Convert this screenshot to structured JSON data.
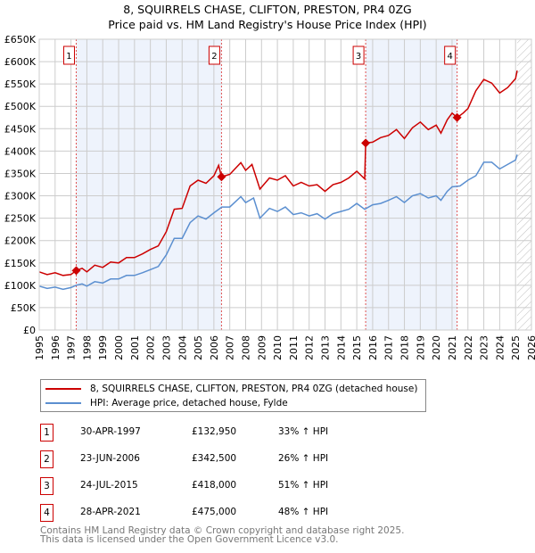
{
  "title_line1": "8, SQUIRRELS CHASE, CLIFTON, PRESTON, PR4 0ZG",
  "title_line2": "Price paid vs. HM Land Registry's House Price Index (HPI)",
  "chart_data": {
    "type": "line",
    "title": "8, SQUIRRELS CHASE, CLIFTON, PRESTON, PR4 0ZG — Price paid vs. HM Land Registry's House Price Index (HPI)",
    "xlim": [
      1995,
      2026
    ],
    "ylim": [
      0,
      650000
    ],
    "grid": true,
    "x_ticks": [
      "1995",
      "1996",
      "1997",
      "1998",
      "1999",
      "2000",
      "2001",
      "2002",
      "2003",
      "2004",
      "2005",
      "2006",
      "2007",
      "2008",
      "2009",
      "2010",
      "2011",
      "2012",
      "2013",
      "2014",
      "2015",
      "2016",
      "2017",
      "2018",
      "2019",
      "2020",
      "2021",
      "2022",
      "2023",
      "2024",
      "2025",
      "2026"
    ],
    "y_ticks": [
      "£0",
      "£50K",
      "£100K",
      "£150K",
      "£200K",
      "£250K",
      "£300K",
      "£350K",
      "£400K",
      "£450K",
      "£500K",
      "£550K",
      "£600K",
      "£650K"
    ],
    "colors": {
      "property": "#cc0000",
      "hpi": "#5b8fd0",
      "shade": "#eef3fc",
      "marker_line": "#e05050"
    },
    "shaded_ranges": [
      [
        1997.33,
        2006.48
      ],
      [
        2015.56,
        2021.32
      ]
    ],
    "forecast_hatch_from": 2025.1,
    "series": [
      {
        "name": "8, SQUIRRELS CHASE, CLIFTON, PRESTON, PR4 0ZG (detached house)",
        "color": "#cc0000",
        "x": [
          1995,
          1995.5,
          1996,
          1996.5,
          1997,
          1997.33,
          1997.7,
          1998,
          1998.5,
          1999,
          1999.5,
          2000,
          2000.5,
          2001,
          2001.5,
          2002,
          2002.5,
          2003,
          2003.5,
          2004,
          2004.5,
          2005,
          2005.5,
          2006,
          2006.3,
          2006.48,
          2007,
          2007.7,
          2008,
          2008.4,
          2008.9,
          2009.5,
          2010,
          2010.5,
          2011,
          2011.5,
          2012,
          2012.5,
          2013,
          2013.5,
          2014,
          2014.5,
          2015,
          2015.5,
          2015.56,
          2016,
          2016.5,
          2017,
          2017.5,
          2018,
          2018.5,
          2019,
          2019.5,
          2020,
          2020.3,
          2020.7,
          2021,
          2021.32,
          2021.7,
          2022,
          2022.5,
          2023,
          2023.5,
          2024,
          2024.5,
          2025,
          2025.1
        ],
        "y": [
          130000,
          124000,
          128000,
          122000,
          124000,
          132950,
          138000,
          130000,
          145000,
          140000,
          152000,
          150000,
          162000,
          162000,
          170000,
          180000,
          188000,
          220000,
          270000,
          272000,
          322000,
          335000,
          328000,
          345000,
          368000,
          342500,
          348000,
          374000,
          357000,
          370000,
          315000,
          340000,
          335000,
          345000,
          322000,
          330000,
          322000,
          325000,
          310000,
          325000,
          330000,
          340000,
          355000,
          338000,
          418000,
          420000,
          430000,
          435000,
          448000,
          428000,
          452000,
          465000,
          448000,
          458000,
          440000,
          470000,
          485000,
          475000,
          485000,
          495000,
          535000,
          560000,
          552000,
          530000,
          542000,
          562000,
          580000
        ]
      },
      {
        "name": "HPI: Average price, detached house, Fylde",
        "color": "#5b8fd0",
        "x": [
          1995,
          1995.5,
          1996,
          1996.5,
          1997,
          1997.33,
          1997.7,
          1998,
          1998.5,
          1999,
          1999.5,
          2000,
          2000.5,
          2001,
          2001.5,
          2002,
          2002.5,
          2003,
          2003.5,
          2004,
          2004.5,
          2005,
          2005.5,
          2006,
          2006.5,
          2007,
          2007.7,
          2008,
          2008.5,
          2008.9,
          2009.5,
          2010,
          2010.5,
          2011,
          2011.5,
          2012,
          2012.5,
          2013,
          2013.5,
          2014,
          2014.5,
          2015,
          2015.5,
          2016,
          2016.5,
          2017,
          2017.5,
          2018,
          2018.5,
          2019,
          2019.5,
          2020,
          2020.3,
          2020.7,
          2021,
          2021.5,
          2022,
          2022.5,
          2023,
          2023.5,
          2024,
          2024.5,
          2025,
          2025.1
        ],
        "y": [
          98000,
          93000,
          96000,
          91000,
          95000,
          100000,
          103000,
          98000,
          108000,
          105000,
          114000,
          114000,
          122000,
          122000,
          128000,
          135000,
          142000,
          168000,
          205000,
          205000,
          240000,
          255000,
          248000,
          262000,
          275000,
          275000,
          298000,
          285000,
          295000,
          250000,
          272000,
          265000,
          275000,
          258000,
          262000,
          255000,
          260000,
          248000,
          260000,
          265000,
          270000,
          283000,
          270000,
          280000,
          283000,
          290000,
          298000,
          285000,
          300000,
          305000,
          295000,
          300000,
          290000,
          310000,
          320000,
          322000,
          335000,
          345000,
          375000,
          375000,
          360000,
          370000,
          380000,
          392000
        ]
      }
    ],
    "sales": [
      {
        "label": "1",
        "x": 1997.33,
        "y": 132950
      },
      {
        "label": "2",
        "x": 2006.48,
        "y": 342500
      },
      {
        "label": "3",
        "x": 2015.56,
        "y": 418000
      },
      {
        "label": "4",
        "x": 2021.32,
        "y": 475000
      }
    ]
  },
  "legend": {
    "property": "8, SQUIRRELS CHASE, CLIFTON, PRESTON, PR4 0ZG (detached house)",
    "hpi": "HPI: Average price, detached house, Fylde"
  },
  "transactions": [
    {
      "num": "1",
      "date": "30-APR-1997",
      "price": "£132,950",
      "hpi": "33% ↑ HPI"
    },
    {
      "num": "2",
      "date": "23-JUN-2006",
      "price": "£342,500",
      "hpi": "26% ↑ HPI"
    },
    {
      "num": "3",
      "date": "24-JUL-2015",
      "price": "£418,000",
      "hpi": "51% ↑ HPI"
    },
    {
      "num": "4",
      "date": "28-APR-2021",
      "price": "£475,000",
      "hpi": "48% ↑ HPI"
    }
  ],
  "footer_line1": "Contains HM Land Registry data © Crown copyright and database right 2025.",
  "footer_line2": "This data is licensed under the Open Government Licence v3.0."
}
